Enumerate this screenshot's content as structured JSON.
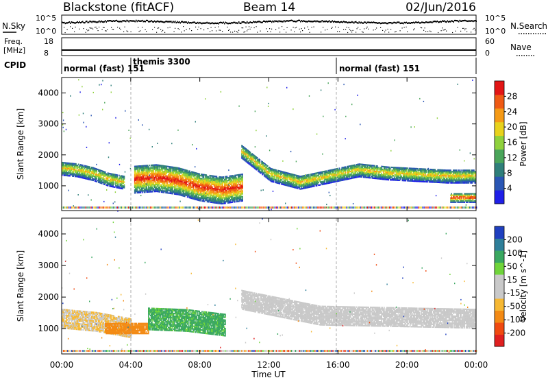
{
  "header": {
    "station": "Blackstone (fitACF)",
    "beam": "Beam 14",
    "date": "02/Jun/2016"
  },
  "top_panels": {
    "nsky": {
      "left_label": "N.Sky",
      "right_label": "N.Search",
      "left_ticks": [
        "10^5",
        "10^0"
      ],
      "right_ticks": [
        "10^5",
        "10^0"
      ]
    },
    "freq": {
      "left_label_line1": "Freq.",
      "left_label_line2": "[MHz]",
      "right_label": "Nave",
      "left_ticks": [
        "18",
        "8"
      ],
      "right_ticks": [
        "60",
        "0"
      ]
    },
    "cpid": {
      "label": "CPID",
      "modes": [
        {
          "text": "normal (fast) 151",
          "start_hour": 0
        },
        {
          "text": "themis 3300",
          "start_hour": 4
        },
        {
          "text": "normal (fast) 151",
          "start_hour": 16
        }
      ]
    }
  },
  "colors": {
    "power": [
      "#1f1fe8",
      "#2a56b4",
      "#2f7f7a",
      "#4aa55a",
      "#8fd13c",
      "#e8d21c",
      "#f59a16",
      "#ef5a14",
      "#e21515"
    ],
    "velocity": [
      "#e02020",
      "#f04a10",
      "#f38a14",
      "#f6b833",
      "#c9c9c9",
      "#c9c9c9",
      "#6fd43a",
      "#3aa860",
      "#2f7f9a",
      "#1f3fbf"
    ]
  },
  "chart_data": [
    {
      "type": "heatmap",
      "panel": "power",
      "ylabel": "Slant Range [km]",
      "xlabel": "Time UT",
      "xlim": [
        0,
        24
      ],
      "ylim": [
        200,
        4500
      ],
      "x_ticks": [
        "00:00",
        "04:00",
        "08:00",
        "12:00",
        "16:00",
        "20:00",
        "00:00"
      ],
      "y_ticks": [
        1000,
        2000,
        3000,
        4000
      ],
      "colorbar": {
        "label": "Power [dB]",
        "ticks": [
          4,
          8,
          12,
          16,
          20,
          24,
          28
        ],
        "range": [
          0,
          30
        ]
      },
      "echo_bands": [
        {
          "from_hour": 0,
          "to_hour": 3.6,
          "center_km": [
            1550,
            1500,
            1380,
            1200,
            1100
          ],
          "width_km": 450,
          "peak_db": 20
        },
        {
          "from_hour": 4.2,
          "to_hour": 10.5,
          "center_km": [
            1200,
            1250,
            1150,
            950,
            850,
            950
          ],
          "width_km": 900,
          "peak_db": 28
        },
        {
          "from_hour": 10.4,
          "to_hour": 24,
          "center_km": [
            2100,
            1350,
            1100,
            1300,
            1500,
            1400,
            1350,
            1300,
            1300
          ],
          "width_km": 450,
          "peak_db": 20
        },
        {
          "from_hour": 22.5,
          "to_hour": 24,
          "center_km": [
            600
          ],
          "width_km": 300,
          "peak_db": 28
        }
      ]
    },
    {
      "type": "heatmap",
      "panel": "velocity",
      "ylabel": "Slant Range [km]",
      "xlabel": "Time UT",
      "xlim": [
        0,
        24
      ],
      "ylim": [
        200,
        4500
      ],
      "x_ticks": [
        "00:00",
        "04:00",
        "08:00",
        "12:00",
        "16:00",
        "20:00",
        "00:00"
      ],
      "y_ticks": [
        1000,
        2000,
        3000,
        4000
      ],
      "colorbar": {
        "label": "Velocity [m s^-1]",
        "ticks": [
          "-200",
          "-100",
          "-50",
          "-15",
          "15",
          "50",
          "100",
          "200"
        ],
        "range": [
          -250,
          250
        ]
      },
      "echo_bands": [
        {
          "from_hour": 0,
          "to_hour": 4,
          "center_km": [
            1300,
            1200,
            1000
          ],
          "width_km": 600,
          "velocity": -15
        },
        {
          "from_hour": 2.5,
          "to_hour": 5,
          "center_km": [
            1000
          ],
          "width_km": 350,
          "velocity": -75
        },
        {
          "from_hour": 5,
          "to_hour": 9.5,
          "center_km": [
            1300,
            1250,
            1100
          ],
          "width_km": 700,
          "velocity": 60
        },
        {
          "from_hour": 10.4,
          "to_hour": 24,
          "center_km": [
            1900,
            1400,
            1350,
            1300
          ],
          "width_km": 600,
          "velocity": 0
        }
      ]
    }
  ]
}
